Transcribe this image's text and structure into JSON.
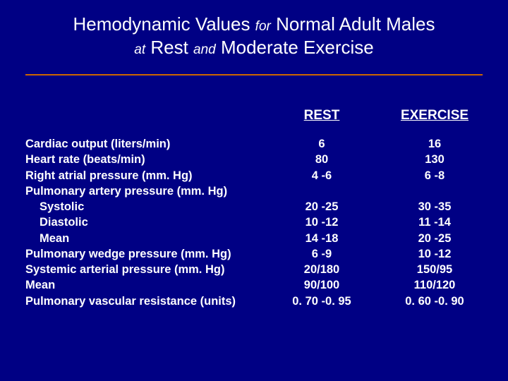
{
  "colors": {
    "background": "#000084",
    "text": "#ffffff",
    "divider": "#cc6600"
  },
  "typography": {
    "title_fontsize": 26,
    "title_small_fontsize": 19,
    "header_fontsize": 19,
    "body_fontsize": 16.5,
    "font_family": "Arial"
  },
  "title": {
    "parts": [
      {
        "text": "Hemodynamic Values ",
        "style": "normal"
      },
      {
        "text": "for",
        "style": "small-italic"
      },
      {
        "text": " Normal Adult Males",
        "style": "normal"
      }
    ],
    "parts2": [
      {
        "text": "at",
        "style": "small-italic"
      },
      {
        "text": " Rest ",
        "style": "normal"
      },
      {
        "text": "and",
        "style": "small-italic"
      },
      {
        "text": " Moderate Exercise",
        "style": "normal"
      }
    ]
  },
  "headers": {
    "rest": "REST",
    "exercise": "EXERCISE"
  },
  "rows": [
    {
      "label": "Cardiac output (liters/min)",
      "indent": false,
      "rest": "6",
      "exercise": "16"
    },
    {
      "label": "Heart rate (beats/min)",
      "indent": false,
      "rest": "80",
      "exercise": "130"
    },
    {
      "label": "Right atrial pressure (mm. Hg)",
      "indent": false,
      "rest": "4 -6",
      "exercise": "6 -8"
    },
    {
      "label": "Pulmonary artery pressure (mm. Hg)",
      "indent": false,
      "rest": "",
      "exercise": ""
    },
    {
      "label": "Systolic",
      "indent": true,
      "rest": "20 -25",
      "exercise": "30 -35"
    },
    {
      "label": "Diastolic",
      "indent": true,
      "rest": "10 -12",
      "exercise": "11 -14"
    },
    {
      "label": "Mean",
      "indent": true,
      "rest": "14 -18",
      "exercise": "20 -25"
    },
    {
      "label": "Pulmonary wedge pressure (mm. Hg)",
      "indent": false,
      "rest": "6 -9",
      "exercise": "10 -12"
    },
    {
      "label": "Systemic arterial pressure (mm. Hg)",
      "indent": false,
      "rest": "20/180",
      "exercise": "150/95"
    },
    {
      "label": "Mean",
      "indent": false,
      "rest": "90/100",
      "exercise": "110/120"
    },
    {
      "label": "Pulmonary vascular resistance (units)",
      "indent": false,
      "rest": "0. 70 -0. 95",
      "exercise": "0. 60 -0. 90"
    }
  ]
}
